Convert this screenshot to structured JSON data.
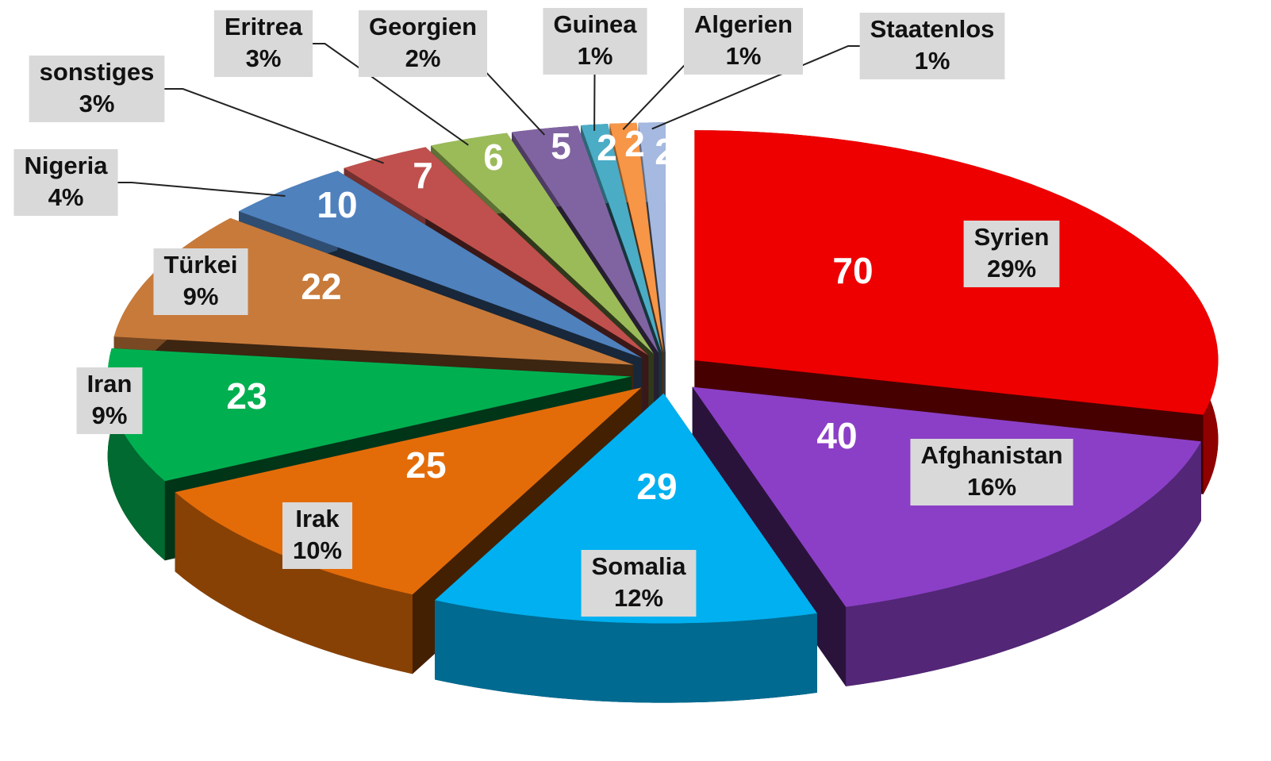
{
  "chart_data": {
    "type": "pie3d",
    "categories": [
      "Syrien",
      "Afghanistan",
      "Somalia",
      "Irak",
      "Iran",
      "Türkei",
      "Nigeria",
      "sonstiges",
      "Eritrea",
      "Georgien",
      "Guinea",
      "Algerien",
      "Staatenlos"
    ],
    "values": [
      70,
      40,
      29,
      25,
      23,
      22,
      10,
      7,
      6,
      5,
      2,
      2,
      2
    ],
    "percent_labels": [
      "29%",
      "16%",
      "12%",
      "10%",
      "9%",
      "9%",
      "4%",
      "3%",
      "3%",
      "2%",
      "1%",
      "1%",
      "1%"
    ],
    "colors": [
      "#ee0000",
      "#8b3fc6",
      "#00b0f0",
      "#e36c09",
      "#00b050",
      "#c87a3a",
      "#4f81bd",
      "#c0504d",
      "#9bbb59",
      "#8064a2",
      "#4bacc6",
      "#f79646",
      "#a6b9e0"
    ]
  }
}
